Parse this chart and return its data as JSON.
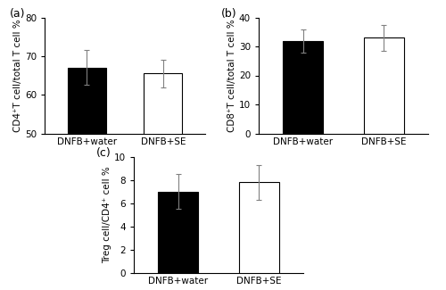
{
  "panel_a": {
    "categories": [
      "DNFB+water",
      "DNFB+SE"
    ],
    "values": [
      67.0,
      65.5
    ],
    "errors": [
      4.5,
      3.5
    ],
    "colors": [
      "black",
      "white"
    ],
    "ylabel": "CD4⁺T cell/total T cell %",
    "ylim": [
      50,
      80
    ],
    "yticks": [
      50,
      60,
      70,
      80
    ],
    "label": "(a)"
  },
  "panel_b": {
    "categories": [
      "DNFB+water",
      "DNFB+SE"
    ],
    "values": [
      32.0,
      33.0
    ],
    "errors": [
      4.0,
      4.5
    ],
    "colors": [
      "black",
      "white"
    ],
    "ylabel": "CD8⁺T cell/total T cell %",
    "ylim": [
      0,
      40
    ],
    "yticks": [
      0,
      10,
      20,
      30,
      40
    ],
    "label": "(b)"
  },
  "panel_c": {
    "categories": [
      "DNFB+water",
      "DNFB+SE"
    ],
    "values": [
      7.0,
      7.8
    ],
    "errors": [
      1.5,
      1.5
    ],
    "colors": [
      "black",
      "white"
    ],
    "ylabel": "Treg cell/CD4⁺ cell %",
    "ylim": [
      0,
      10
    ],
    "yticks": [
      0,
      2,
      4,
      6,
      8,
      10
    ],
    "label": "(c)"
  },
  "bar_width": 0.5,
  "edgecolor": "black",
  "background_color": "white",
  "tick_fontsize": 7.5,
  "label_fontsize": 7.5,
  "panel_label_fontsize": 9
}
